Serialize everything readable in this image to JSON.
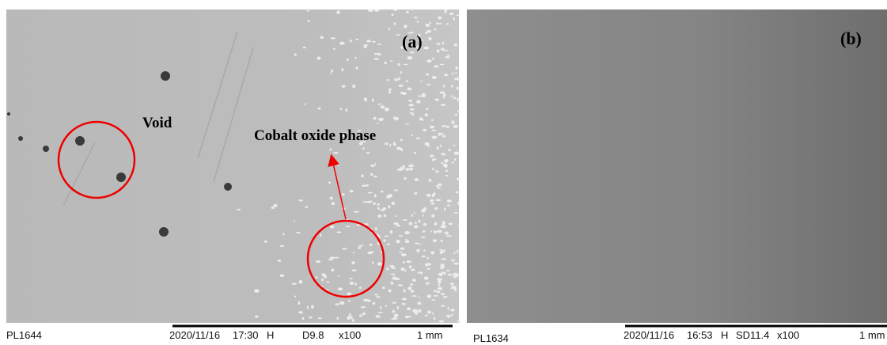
{
  "panels": [
    {
      "label": "(a)",
      "annotations": [
        "Void",
        "Cobalt oxide phase"
      ],
      "footer": {
        "id": "PL1644",
        "date": "2020/11/16",
        "time": "17:30",
        "mode": "H",
        "wd": "D9.8",
        "mag": "x100",
        "scale": "1 mm"
      }
    },
    {
      "label": "(b)",
      "footer": {
        "id": "PL1634",
        "date": "2020/11/16",
        "time": "16:53",
        "mode": "H",
        "wd": "SD11.4",
        "mag": "x100",
        "scale": "1 mm"
      }
    }
  ]
}
